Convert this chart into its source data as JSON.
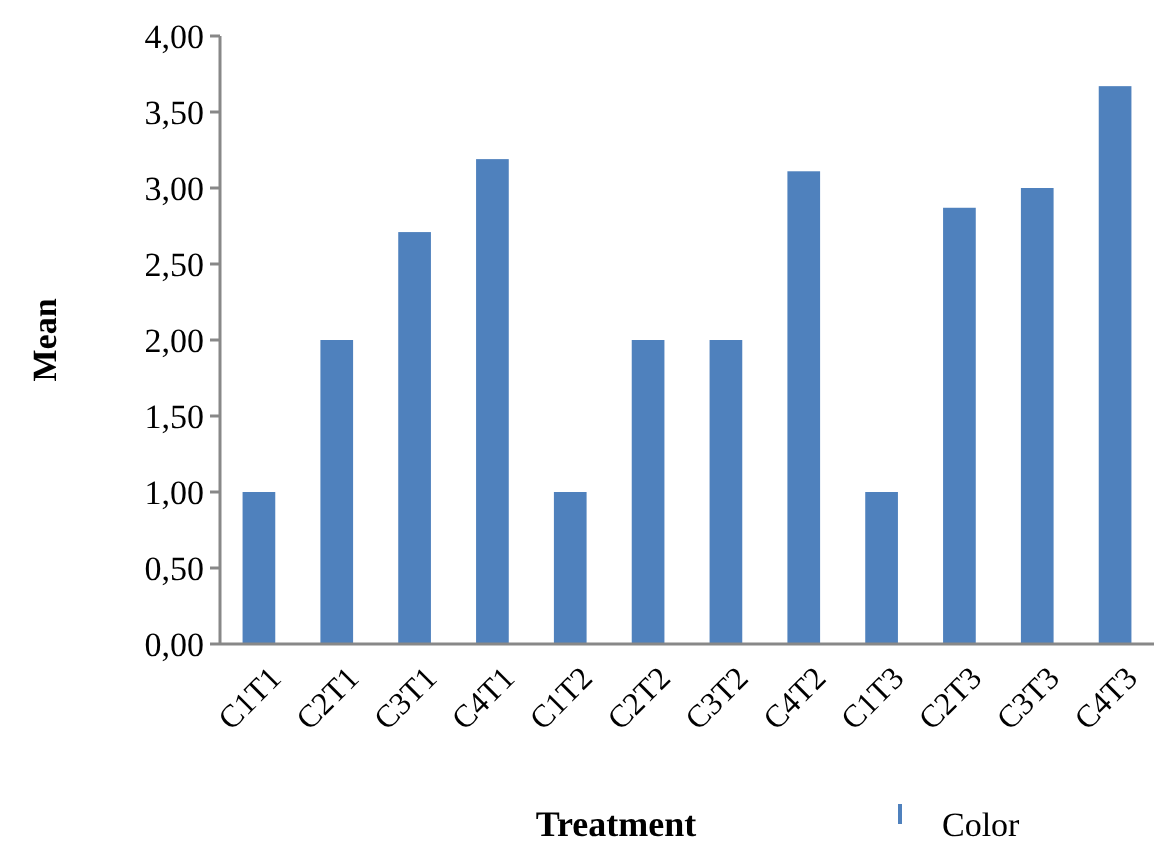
{
  "chart_data": {
    "type": "bar",
    "xlabel": "Treatment",
    "ylabel": "Mean",
    "categories": [
      "C1T1",
      "C2T1",
      "C3T1",
      "C4T1",
      "C1T2",
      "C2T2",
      "C3T2",
      "C4T2",
      "C1T3",
      "C2T3",
      "C3T3",
      "C4T3"
    ],
    "series": [
      {
        "name": "Color",
        "color": "#4f81bd",
        "values": [
          1.0,
          2.0,
          2.71,
          3.19,
          1.0,
          2.0,
          2.0,
          3.11,
          1.0,
          2.87,
          3.0,
          3.67
        ]
      }
    ],
    "ylim": [
      0,
      4
    ],
    "yticks": [
      {
        "value": 0,
        "label": "0,00"
      },
      {
        "value": 0.5,
        "label": "0,50"
      },
      {
        "value": 1,
        "label": "1,00"
      },
      {
        "value": 1.5,
        "label": "1,50"
      },
      {
        "value": 2,
        "label": "2,00"
      },
      {
        "value": 2.5,
        "label": "2,50"
      },
      {
        "value": 3,
        "label": "3,00"
      },
      {
        "value": 3.5,
        "label": "3,50"
      },
      {
        "value": 4,
        "label": "4,00"
      }
    ],
    "grid": false,
    "legend": "bottom right"
  }
}
